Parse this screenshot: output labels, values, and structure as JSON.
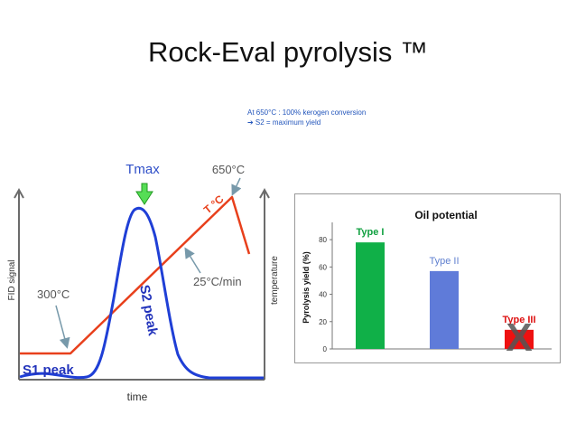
{
  "slide": {
    "title": "Rock-Eval pyrolysis ™",
    "note_line1": "At 650°C : 100% kerogen conversion",
    "note_line2": "➔ S2 = maximum yield"
  },
  "colors": {
    "fid_curve": "#1f3fd6",
    "temperature_line": "#e8401c",
    "tmax_arrow": "#55dd55",
    "label_blue": "#2233bb",
    "axis_gray": "#6b6b6b",
    "type1": "#10b048",
    "type2": "#5f7bd9",
    "type3": "#ee1111",
    "type1_label": "#10a040",
    "type2_label": "#6080d0",
    "type3_label": "#dd1111",
    "type3_mark": "#555555"
  },
  "chart_data": [
    {
      "type": "line",
      "xlabel": "time",
      "ylabel": "FID signal",
      "y2label": "temperature",
      "curve_labels": {
        "tmax": "Tmax",
        "t650": "650°C",
        "t300": "300°C",
        "rate": "25°C/min",
        "temp_line": "T °C",
        "s1": "S1 peak",
        "s2": "S2 peak"
      }
    },
    {
      "type": "bar",
      "title": "Oil potential",
      "ylabel": "Pyrolysis yield (%)",
      "ylim": [
        0,
        90
      ],
      "yticks": [
        0,
        20,
        40,
        60,
        80
      ],
      "categories": [
        "Type I",
        "Type II",
        "Type III"
      ],
      "values": [
        78,
        57,
        14
      ],
      "excluded_mark": "X"
    }
  ]
}
